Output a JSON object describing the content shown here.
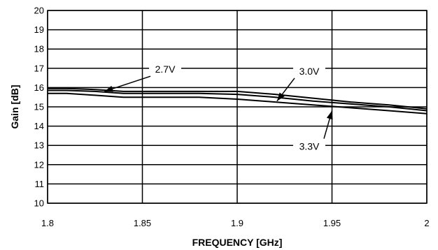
{
  "chart_data": {
    "type": "line",
    "title": "",
    "xlabel": "FREQUENCY [GHz]",
    "ylabel": "Gain [dB]",
    "xlim": [
      1.8,
      2.0
    ],
    "ylim": [
      10,
      20
    ],
    "x_ticks": [
      "1.8",
      "1.85",
      "1.9",
      "1.95",
      "2"
    ],
    "y_ticks": [
      "10",
      "11",
      "12",
      "13",
      "14",
      "15",
      "16",
      "17",
      "18",
      "19",
      "20"
    ],
    "grid": true,
    "series": [
      {
        "name": "2.7V",
        "x": [
          1.8,
          1.81,
          1.825,
          1.84,
          1.86,
          1.88,
          1.9,
          1.92,
          1.94,
          1.96,
          1.98,
          2.0
        ],
        "y": [
          15.7,
          15.7,
          15.6,
          15.5,
          15.5,
          15.5,
          15.4,
          15.25,
          15.1,
          14.95,
          14.8,
          14.65
        ]
      },
      {
        "name": "3.0V",
        "x": [
          1.8,
          1.81,
          1.825,
          1.84,
          1.86,
          1.88,
          1.9,
          1.92,
          1.94,
          1.96,
          1.98,
          2.0
        ],
        "y": [
          15.85,
          15.85,
          15.8,
          15.7,
          15.7,
          15.7,
          15.65,
          15.5,
          15.3,
          15.15,
          15.0,
          14.8
        ]
      },
      {
        "name": "3.3V",
        "x": [
          1.8,
          1.81,
          1.825,
          1.84,
          1.86,
          1.88,
          1.9,
          1.92,
          1.94,
          1.96,
          1.98,
          2.0
        ],
        "y": [
          15.95,
          15.95,
          15.9,
          15.8,
          15.8,
          15.8,
          15.8,
          15.65,
          15.45,
          15.25,
          15.1,
          14.9
        ]
      }
    ],
    "annotations": [
      {
        "text": "2.7V",
        "tx": 1.862,
        "ty": 16.95,
        "ax": 1.83,
        "ay": 15.8
      },
      {
        "text": "3.0V",
        "tx": 1.938,
        "ty": 16.85,
        "ax": 1.921,
        "ay": 15.3
      },
      {
        "text": "3.3V",
        "tx": 1.938,
        "ty": 12.95,
        "ax": 1.95,
        "ay": 14.8
      }
    ]
  }
}
